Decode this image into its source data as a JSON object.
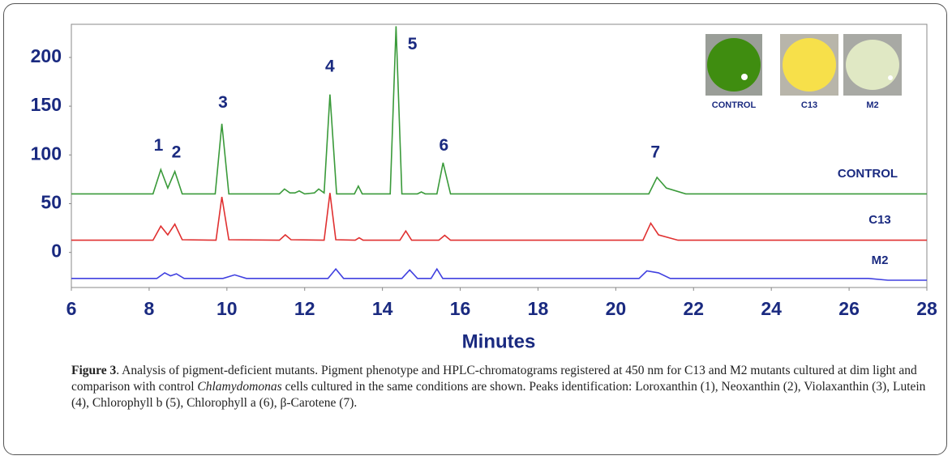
{
  "chart_data": {
    "type": "line",
    "x_label": "Minutes",
    "xlim": [
      6,
      28
    ],
    "xticks": [
      6,
      8,
      10,
      12,
      14,
      16,
      18,
      20,
      22,
      24,
      26,
      28
    ],
    "ylim": [
      -36,
      234
    ],
    "yticks": [
      0,
      50,
      100,
      150,
      200
    ],
    "series": [
      {
        "name": "CONTROL",
        "color": "#3a9a3a",
        "x": [
          6,
          8.1,
          8.3,
          8.48,
          8.66,
          8.85,
          9.7,
          9.87,
          10.05,
          11.35,
          11.48,
          11.62,
          11.75,
          11.86,
          12.0,
          12.25,
          12.36,
          12.5,
          12.65,
          12.82,
          13.28,
          13.38,
          13.48,
          14.2,
          14.35,
          14.5,
          14.9,
          15.0,
          15.1,
          15.4,
          15.56,
          15.75,
          20.85,
          21.06,
          21.3,
          21.8,
          28
        ],
        "values": [
          60,
          60,
          85,
          66,
          83,
          60,
          60,
          132,
          60,
          60,
          65,
          61,
          61,
          63,
          60,
          61,
          65,
          61,
          162,
          60,
          60,
          68,
          60,
          60,
          232,
          60,
          60,
          62,
          60,
          60,
          92,
          60,
          60,
          77,
          66,
          60,
          60
        ]
      },
      {
        "name": "C13",
        "color": "#e03030",
        "x": [
          6,
          8.1,
          8.3,
          8.48,
          8.66,
          8.85,
          9.72,
          9.87,
          10.05,
          11.35,
          11.5,
          11.65,
          12.5,
          12.65,
          12.8,
          13.3,
          13.4,
          13.5,
          14.45,
          14.6,
          14.75,
          15.45,
          15.6,
          15.75,
          20.7,
          20.9,
          21.1,
          21.6,
          28
        ],
        "values": [
          12.5,
          12.5,
          27,
          18,
          29,
          13,
          12.5,
          57,
          13,
          12.5,
          18,
          13,
          12.5,
          61,
          13,
          12.5,
          15,
          12.5,
          12.5,
          22,
          12.5,
          12.5,
          17.5,
          12.5,
          12.5,
          30,
          18,
          12.5,
          12.5
        ]
      },
      {
        "name": "M2",
        "color": "#4040e0",
        "x": [
          6,
          8.2,
          8.4,
          8.55,
          8.7,
          8.9,
          9.9,
          10.2,
          10.5,
          12.6,
          12.8,
          13.0,
          14.5,
          14.7,
          14.9,
          15.25,
          15.4,
          15.55,
          20.6,
          20.8,
          21.1,
          21.4,
          26.5,
          27,
          28
        ],
        "values": [
          -26.7,
          -26.7,
          -21,
          -24,
          -22,
          -26.7,
          -26.7,
          -23,
          -26.7,
          -26.7,
          -17,
          -26.7,
          -26.7,
          -18,
          -26.7,
          -26.7,
          -17,
          -26.7,
          -26.7,
          -19,
          -21,
          -26.7,
          -26.7,
          -28.5,
          -28.5
        ]
      }
    ],
    "annotations": [
      {
        "text": "1",
        "x": 8.24,
        "y": 109
      },
      {
        "text": "2",
        "x": 8.7,
        "y": 102
      },
      {
        "text": "3",
        "x": 9.9,
        "y": 153
      },
      {
        "text": "4",
        "x": 12.65,
        "y": 190
      },
      {
        "text": "5",
        "x": 14.77,
        "y": 213
      },
      {
        "text": "6",
        "x": 15.58,
        "y": 109
      },
      {
        "text": "7",
        "x": 21.02,
        "y": 102
      }
    ],
    "inset_labels": [
      "CONTROL",
      "C13",
      "M2"
    ]
  },
  "caption": {
    "parts": [
      "Figure 3",
      ". Analysis of pigment-deficient mutants. Pigment phenotype and HPLC-chromatograms registered at 450 nm for C13 and M2 mutants cultured at dim light and comparison with control ",
      "Chlamydomonas",
      " cells cultured in the same conditions are shown. Peaks identification: Loroxanthin (1), Neoxanthin (2), Violaxanthin (3), Lutein (4), Chlorophyll b (5), Chlorophyll a (6), β-Carotene (7)."
    ]
  }
}
